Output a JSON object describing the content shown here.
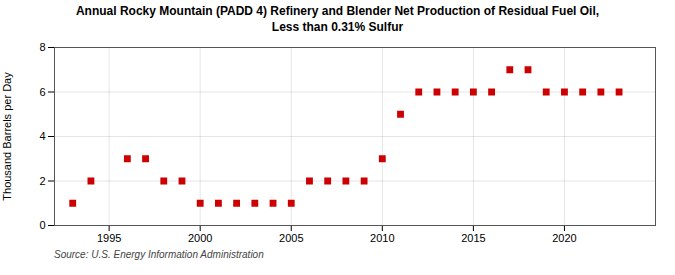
{
  "chart_data": {
    "type": "scatter",
    "title": "Annual Rocky Mountain (PADD 4) Refinery and Blender Net Production of Residual Fuel Oil,\nLess than 0.31% Sulfur",
    "ylabel": "Thousand Barrels per Day",
    "source": "Source: U.S. Energy Information Administration",
    "x": [
      1993,
      1994,
      1996,
      1997,
      1998,
      1999,
      2000,
      2001,
      2002,
      2003,
      2004,
      2005,
      2006,
      2007,
      2008,
      2009,
      2010,
      2011,
      2012,
      2013,
      2014,
      2015,
      2016,
      2017,
      2018,
      2019,
      2020,
      2021,
      2022,
      2023
    ],
    "values": [
      1,
      2,
      3,
      3,
      2,
      2,
      1,
      1,
      1,
      1,
      1,
      1,
      2,
      2,
      2,
      2,
      3,
      5,
      6,
      6,
      6,
      6,
      6,
      7,
      7,
      6,
      6,
      6,
      6,
      6
    ],
    "color": "#cc0000",
    "marker": "square",
    "xlim": [
      1992,
      2025
    ],
    "xticks": [
      1995,
      2000,
      2005,
      2010,
      2015,
      2020
    ],
    "ylim": [
      0,
      8
    ],
    "yticks": [
      0,
      2,
      4,
      6,
      8
    ],
    "grid": true
  }
}
